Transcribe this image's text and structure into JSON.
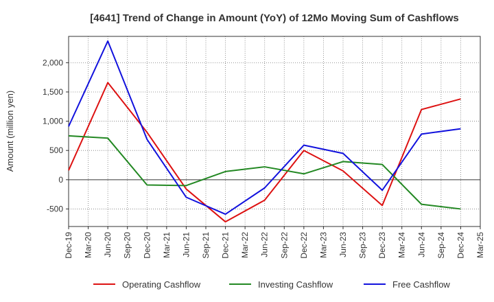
{
  "chart_data": {
    "type": "line",
    "title": "[4641]  Trend of Change in Amount (YoY) of 12Mo Moving Sum of Cashflows",
    "xlabel": "",
    "ylabel": "Amount (million yen)",
    "ylim": [
      -800,
      2450
    ],
    "yticks": [
      -500,
      0,
      500,
      1000,
      1500,
      2000
    ],
    "ytick_labels": [
      "-500",
      "0",
      "500",
      "1,000",
      "1,500",
      "2,000"
    ],
    "categories": [
      "Dec-19",
      "Mar-20",
      "Jun-20",
      "Sep-20",
      "Dec-20",
      "Mar-21",
      "Jun-21",
      "Sep-21",
      "Dec-21",
      "Mar-22",
      "Jun-22",
      "Sep-22",
      "Dec-22",
      "Mar-23",
      "Jun-23",
      "Sep-23",
      "Dec-23",
      "Mar-24",
      "Jun-24",
      "Sep-24",
      "Dec-24",
      "Mar-25"
    ],
    "grid": true,
    "legend_position": "bottom",
    "series": [
      {
        "name": "Operating Cashflow",
        "color": "#dd1111",
        "points": [
          [
            "Dec-19",
            160
          ],
          [
            "Jun-20",
            1660
          ],
          [
            "Dec-20",
            810
          ],
          [
            "Jun-21",
            -160
          ],
          [
            "Dec-21",
            -720
          ],
          [
            "Jun-22",
            -350
          ],
          [
            "Dec-22",
            500
          ],
          [
            "Jun-23",
            150
          ],
          [
            "Dec-23",
            -440
          ],
          [
            "Jun-24",
            1200
          ],
          [
            "Dec-24",
            1380
          ]
        ]
      },
      {
        "name": "Investing Cashflow",
        "color": "#228822",
        "points": [
          [
            "Dec-19",
            750
          ],
          [
            "Jun-20",
            710
          ],
          [
            "Dec-20",
            -90
          ],
          [
            "Jun-21",
            -100
          ],
          [
            "Dec-21",
            140
          ],
          [
            "Jun-22",
            220
          ],
          [
            "Dec-22",
            100
          ],
          [
            "Jun-23",
            310
          ],
          [
            "Dec-23",
            260
          ],
          [
            "Jun-24",
            -420
          ],
          [
            "Dec-24",
            -500
          ]
        ]
      },
      {
        "name": "Free Cashflow",
        "color": "#1111dd",
        "points": [
          [
            "Dec-19",
            910
          ],
          [
            "Jun-20",
            2370
          ],
          [
            "Dec-20",
            690
          ],
          [
            "Jun-21",
            -300
          ],
          [
            "Dec-21",
            -590
          ],
          [
            "Jun-22",
            -140
          ],
          [
            "Dec-22",
            590
          ],
          [
            "Jun-23",
            450
          ],
          [
            "Dec-23",
            -180
          ],
          [
            "Jun-24",
            780
          ],
          [
            "Dec-24",
            870
          ]
        ]
      }
    ]
  }
}
